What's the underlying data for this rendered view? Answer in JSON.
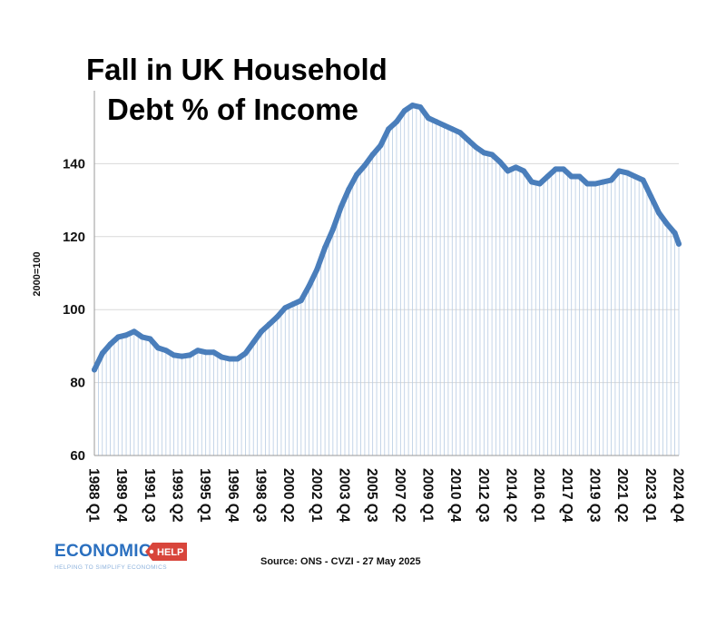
{
  "chart_data": {
    "type": "area",
    "title_lines": [
      "Fall in UK Household",
      "Debt % of Income"
    ],
    "ylabel": "2000=100",
    "ylim": [
      60,
      160
    ],
    "yticks": [
      60,
      80,
      100,
      120,
      140
    ],
    "grid": "horizontal",
    "x_tick_labels": [
      "1988 Q1",
      "1989 Q4",
      "1991 Q3",
      "1993 Q2",
      "1995 Q1",
      "1996 Q4",
      "1998 Q3",
      "2000 Q2",
      "2002 Q1",
      "2003 Q4",
      "2005 Q3",
      "2007 Q2",
      "2009 Q1",
      "2010 Q4",
      "2012 Q3",
      "2014 Q2",
      "2016 Q1",
      "2017 Q4",
      "2019 Q3",
      "2021 Q2",
      "2023 Q1",
      "2024 Q4"
    ],
    "series": [
      {
        "color": "#4a7ebb",
        "points": [
          [
            "1988 Q1",
            83.5
          ],
          [
            "1988 Q3",
            88
          ],
          [
            "1989 Q1",
            90.5
          ],
          [
            "1989 Q3",
            92.5
          ],
          [
            "1990 Q1",
            93
          ],
          [
            "1990 Q3",
            94
          ],
          [
            "1991 Q1",
            92.5
          ],
          [
            "1991 Q3",
            92
          ],
          [
            "1992 Q1",
            89.5
          ],
          [
            "1992 Q3",
            88.8
          ],
          [
            "1993 Q1",
            87.5
          ],
          [
            "1993 Q3",
            87.2
          ],
          [
            "1994 Q1",
            87.5
          ],
          [
            "1994 Q3",
            88.8
          ],
          [
            "1995 Q1",
            88.3
          ],
          [
            "1995 Q3",
            88.3
          ],
          [
            "1996 Q1",
            87
          ],
          [
            "1996 Q3",
            86.5
          ],
          [
            "1997 Q1",
            86.5
          ],
          [
            "1997 Q3",
            88
          ],
          [
            "1998 Q1",
            91
          ],
          [
            "1998 Q3",
            94
          ],
          [
            "1999 Q1",
            96
          ],
          [
            "1999 Q3",
            98
          ],
          [
            "2000 Q1",
            100.5
          ],
          [
            "2000 Q3",
            101.5
          ],
          [
            "2001 Q1",
            102.5
          ],
          [
            "2001 Q3",
            106.5
          ],
          [
            "2002 Q1",
            111
          ],
          [
            "2002 Q3",
            117
          ],
          [
            "2003 Q1",
            122
          ],
          [
            "2003 Q3",
            128
          ],
          [
            "2004 Q1",
            133
          ],
          [
            "2004 Q3",
            137
          ],
          [
            "2005 Q1",
            139.5
          ],
          [
            "2005 Q3",
            142.5
          ],
          [
            "2006 Q1",
            145
          ],
          [
            "2006 Q3",
            149.5
          ],
          [
            "2007 Q1",
            151.5
          ],
          [
            "2007 Q3",
            154.5
          ],
          [
            "2008 Q1",
            156
          ],
          [
            "2008 Q3",
            155.5
          ],
          [
            "2009 Q1",
            152.5
          ],
          [
            "2009 Q3",
            151.5
          ],
          [
            "2010 Q1",
            150.5
          ],
          [
            "2010 Q3",
            149.5
          ],
          [
            "2011 Q1",
            148.5
          ],
          [
            "2011 Q3",
            146.5
          ],
          [
            "2012 Q1",
            144.5
          ],
          [
            "2012 Q3",
            143
          ],
          [
            "2013 Q1",
            142.5
          ],
          [
            "2013 Q3",
            140.5
          ],
          [
            "2014 Q1",
            138
          ],
          [
            "2014 Q3",
            139
          ],
          [
            "2015 Q1",
            138
          ],
          [
            "2015 Q3",
            135
          ],
          [
            "2016 Q1",
            134.5
          ],
          [
            "2016 Q3",
            136.5
          ],
          [
            "2017 Q1",
            138.5
          ],
          [
            "2017 Q3",
            138.5
          ],
          [
            "2018 Q1",
            136.5
          ],
          [
            "2018 Q3",
            136.5
          ],
          [
            "2019 Q1",
            134.5
          ],
          [
            "2019 Q3",
            134.5
          ],
          [
            "2020 Q1",
            135
          ],
          [
            "2020 Q3",
            135.5
          ],
          [
            "2021 Q1",
            138
          ],
          [
            "2021 Q3",
            137.5
          ],
          [
            "2022 Q1",
            136.5
          ],
          [
            "2022 Q3",
            135.5
          ],
          [
            "2023 Q1",
            131
          ],
          [
            "2023 Q3",
            126.5
          ],
          [
            "2024 Q1",
            123.5
          ],
          [
            "2024 Q3",
            121
          ],
          [
            "2024 Q4",
            118
          ]
        ]
      }
    ]
  },
  "logo": {
    "word": "ECONOMICS",
    "badge": "HELP",
    "tagline": "HELPING TO SIMPLIFY ECONOMICS"
  },
  "source": "Source: ONS - CVZI - 27 May 2025",
  "colors": {
    "line": "#4a7ebb",
    "drop_lines": "#b7cbe3",
    "grid": "#d9d9d9",
    "axis": "#9a9a9a",
    "logo_blue": "#2a6fbf",
    "logo_red": "#d8453b"
  }
}
